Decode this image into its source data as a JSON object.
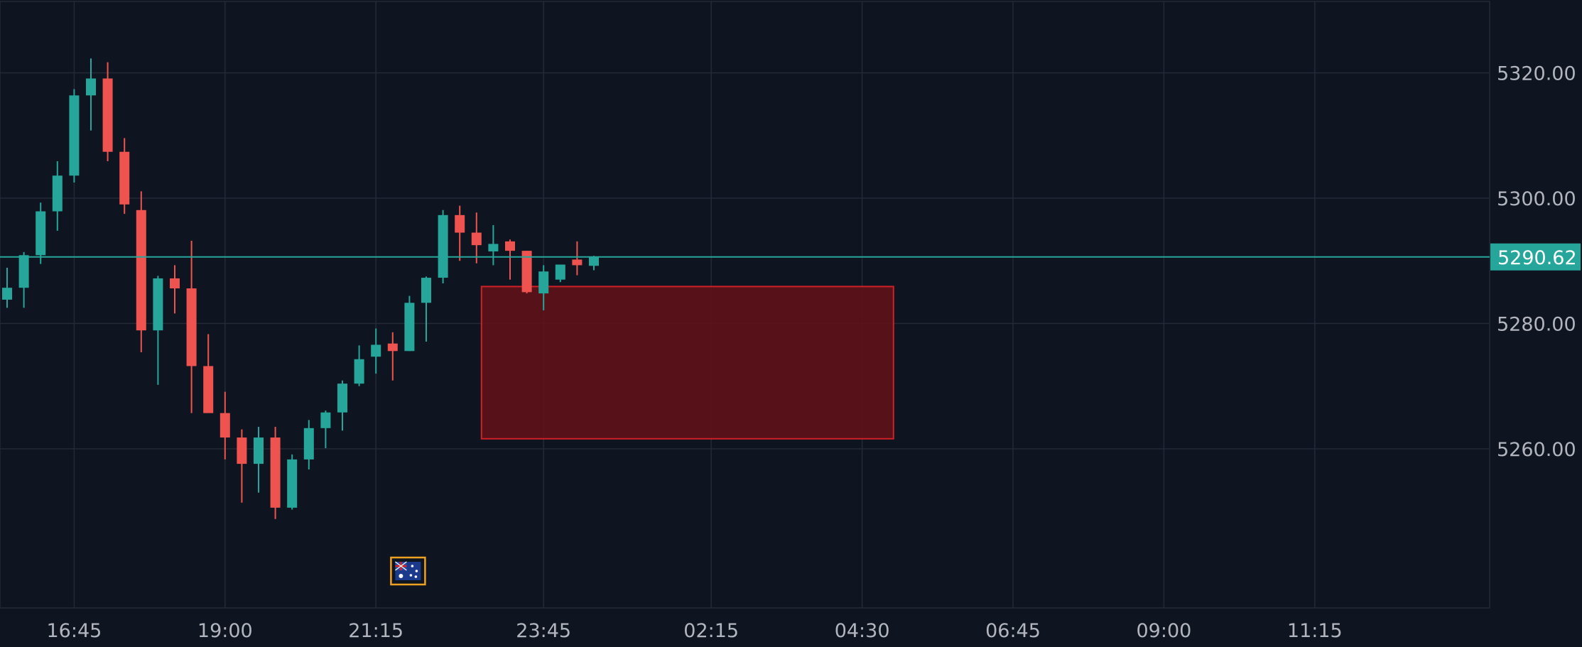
{
  "chart_data": {
    "type": "candlestick",
    "title": "",
    "xlabel": "",
    "ylabel": "",
    "ylim": [
      5234.6,
      5331.4
    ],
    "y_ticks": [
      "5320.00",
      "5300.00",
      "5280.00",
      "5260.00"
    ],
    "x_ticks": [
      {
        "label": "16:45",
        "t": "16:45"
      },
      {
        "label": "19:00",
        "t": "19:00"
      },
      {
        "label": "21:15",
        "t": "21:15"
      },
      {
        "label": "23:45",
        "t": "23:45"
      },
      {
        "label": "02:15",
        "t": "02:15"
      },
      {
        "label": "04:30",
        "t": "04:30"
      },
      {
        "label": "06:45",
        "t": "06:45"
      },
      {
        "label": "09:00",
        "t": "09:00"
      },
      {
        "label": "11:15",
        "t": "11:15"
      }
    ],
    "bar_interval_minutes": 15,
    "first_bar_time": "15:45",
    "colors": {
      "background": "#0f1520",
      "grid": "#242b38",
      "up": "#26a69a",
      "down": "#ef5350",
      "price_line": "#26a69a",
      "zone_fill": "#5c1218",
      "zone_stroke": "#d01f26"
    },
    "grid": true,
    "current_price": {
      "value": "5290.62"
    },
    "zone": {
      "time_start": "22:45",
      "time_end": "05:00",
      "price_top": 5285.9,
      "price_bottom": 5261.6
    },
    "event_marker": {
      "icon": "australia-flag-icon",
      "time": "21:45"
    },
    "candles": [
      {
        "t": "15:45",
        "o": 5283.8,
        "h": 5288.9,
        "l": 5282.5,
        "c": 5285.7
      },
      {
        "t": "16:00",
        "o": 5285.7,
        "h": 5291.4,
        "l": 5282.5,
        "c": 5290.9
      },
      {
        "t": "16:15",
        "o": 5290.9,
        "h": 5299.3,
        "l": 5289.5,
        "c": 5297.9
      },
      {
        "t": "16:30",
        "o": 5297.9,
        "h": 5305.9,
        "l": 5294.8,
        "c": 5303.6
      },
      {
        "t": "16:45",
        "o": 5303.6,
        "h": 5317.4,
        "l": 5302.5,
        "c": 5316.4
      },
      {
        "t": "17:00",
        "o": 5316.4,
        "h": 5322.3,
        "l": 5310.8,
        "c": 5319.1
      },
      {
        "t": "17:15",
        "o": 5319.1,
        "h": 5321.7,
        "l": 5305.9,
        "c": 5307.4
      },
      {
        "t": "17:30",
        "o": 5307.4,
        "h": 5309.6,
        "l": 5297.5,
        "c": 5299.0
      },
      {
        "t": "17:45",
        "o": 5298.1,
        "h": 5301.1,
        "l": 5275.4,
        "c": 5278.9
      },
      {
        "t": "18:00",
        "o": 5278.9,
        "h": 5287.6,
        "l": 5270.2,
        "c": 5287.2
      },
      {
        "t": "18:15",
        "o": 5287.2,
        "h": 5289.3,
        "l": 5281.6,
        "c": 5285.6
      },
      {
        "t": "18:30",
        "o": 5285.6,
        "h": 5293.2,
        "l": 5265.7,
        "c": 5273.2
      },
      {
        "t": "18:45",
        "o": 5273.2,
        "h": 5278.3,
        "l": 5265.7,
        "c": 5265.7
      },
      {
        "t": "19:00",
        "o": 5265.7,
        "h": 5269.1,
        "l": 5258.3,
        "c": 5261.8
      },
      {
        "t": "19:15",
        "o": 5261.8,
        "h": 5263.1,
        "l": 5251.4,
        "c": 5257.6
      },
      {
        "t": "19:30",
        "o": 5257.6,
        "h": 5263.5,
        "l": 5253.0,
        "c": 5261.8
      },
      {
        "t": "19:45",
        "o": 5261.8,
        "h": 5263.5,
        "l": 5248.8,
        "c": 5250.6
      },
      {
        "t": "20:00",
        "o": 5250.6,
        "h": 5259.1,
        "l": 5250.3,
        "c": 5258.3
      },
      {
        "t": "20:15",
        "o": 5258.3,
        "h": 5264.6,
        "l": 5256.7,
        "c": 5263.3
      },
      {
        "t": "20:30",
        "o": 5263.3,
        "h": 5266.1,
        "l": 5260.1,
        "c": 5265.8
      },
      {
        "t": "20:45",
        "o": 5265.8,
        "h": 5270.9,
        "l": 5262.9,
        "c": 5270.4
      },
      {
        "t": "21:00",
        "o": 5270.4,
        "h": 5276.5,
        "l": 5270.0,
        "c": 5274.3
      },
      {
        "t": "21:15",
        "o": 5274.7,
        "h": 5279.2,
        "l": 5272.0,
        "c": 5276.6
      },
      {
        "t": "21:30",
        "o": 5276.8,
        "h": 5278.6,
        "l": 5270.9,
        "c": 5275.6
      },
      {
        "t": "21:45",
        "o": 5275.6,
        "h": 5284.4,
        "l": 5275.6,
        "c": 5283.3
      },
      {
        "t": "22:00",
        "o": 5283.3,
        "h": 5287.5,
        "l": 5277.1,
        "c": 5287.3
      },
      {
        "t": "22:15",
        "o": 5287.3,
        "h": 5298.1,
        "l": 5286.4,
        "c": 5297.3
      },
      {
        "t": "22:30",
        "o": 5297.3,
        "h": 5298.8,
        "l": 5290.0,
        "c": 5294.5
      },
      {
        "t": "22:45",
        "o": 5294.5,
        "h": 5297.7,
        "l": 5289.6,
        "c": 5292.5
      },
      {
        "t": "23:00",
        "o": 5291.5,
        "h": 5295.7,
        "l": 5289.3,
        "c": 5292.7
      },
      {
        "t": "23:15",
        "o": 5293.1,
        "h": 5293.4,
        "l": 5287.0,
        "c": 5291.6
      },
      {
        "t": "23:30",
        "o": 5291.6,
        "h": 5291.6,
        "l": 5284.8,
        "c": 5285.0
      },
      {
        "t": "23:45",
        "o": 5284.8,
        "h": 5289.3,
        "l": 5282.1,
        "c": 5288.3
      },
      {
        "t": "00:00",
        "o": 5287.0,
        "h": 5289.4,
        "l": 5286.6,
        "c": 5289.4
      },
      {
        "t": "00:15",
        "o": 5290.2,
        "h": 5293.1,
        "l": 5287.7,
        "c": 5289.3
      },
      {
        "t": "00:30",
        "o": 5289.2,
        "h": 5290.8,
        "l": 5288.5,
        "c": 5290.6
      }
    ]
  }
}
